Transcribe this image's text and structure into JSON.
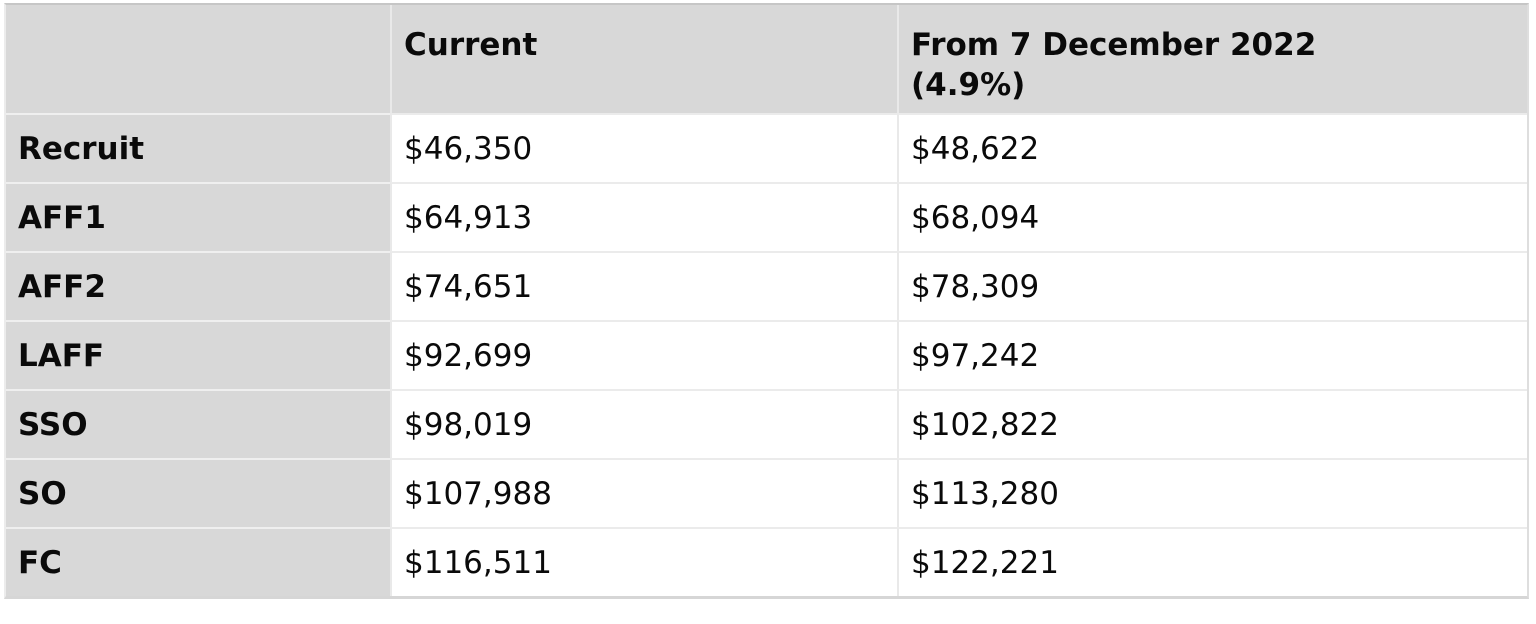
{
  "table": {
    "header": [
      "",
      "Current",
      "From 7 December 2022\n(4.9%)"
    ],
    "rows": [
      {
        "label": "Recruit",
        "current": "$46,350",
        "from_dec_2022": "$48,622"
      },
      {
        "label": "AFF1",
        "current": "$64,913",
        "from_dec_2022": "$68,094"
      },
      {
        "label": "AFF2",
        "current": "$74,651",
        "from_dec_2022": "$78,309"
      },
      {
        "label": "LAFF",
        "current": "$92,699",
        "from_dec_2022": "$97,242"
      },
      {
        "label": "SSO",
        "current": "$98,019",
        "from_dec_2022": "$102,822"
      },
      {
        "label": "SO",
        "current": "$107,988",
        "from_dec_2022": "$113,280"
      },
      {
        "label": "FC",
        "current": "$116,511",
        "from_dec_2022": "$122,221"
      }
    ],
    "colors": {
      "header_bg": "#d8d8d8",
      "label_column_bg": "#d8d8d8",
      "cell_bg": "#ffffff",
      "divider": "#e9e9e9",
      "outer_top_border": "#c6c6c6",
      "text": "#0a0a0a"
    }
  },
  "chart_data": {
    "type": "table",
    "title": "",
    "columns": [
      "",
      "Current",
      "From 7 December 2022 (4.9%)"
    ],
    "categories": [
      "Recruit",
      "AFF1",
      "AFF2",
      "LAFF",
      "SSO",
      "SO",
      "FC"
    ],
    "series": [
      {
        "name": "Current",
        "values": [
          46350,
          64913,
          74651,
          92699,
          98019,
          107988,
          116511
        ]
      },
      {
        "name": "From 7 December 2022 (4.9%)",
        "values": [
          48622,
          68094,
          78309,
          97242,
          102822,
          113280,
          122221
        ]
      }
    ],
    "value_format": "USD currency with thousands separator",
    "increase_percent": 4.9
  }
}
